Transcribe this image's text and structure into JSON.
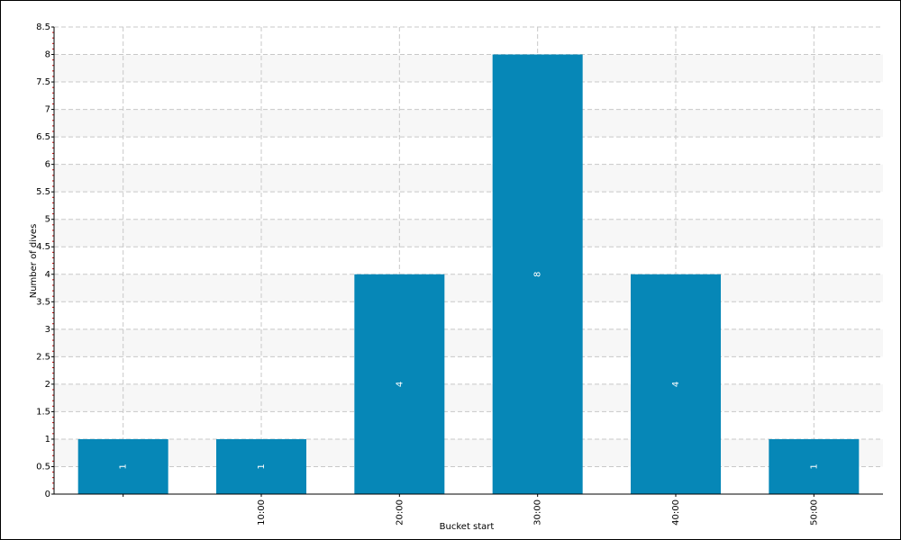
{
  "chart_data": {
    "type": "bar",
    "x_label": "Bucket start",
    "y_label": "Number of dives",
    "categories": [
      null,
      "10:00",
      "20:00",
      "30:00",
      "40:00",
      "50:00"
    ],
    "values": [
      1,
      1,
      4,
      8,
      4,
      1
    ],
    "color": "#0687b7",
    "ylim": [
      0,
      8.5
    ],
    "yticks": [
      0,
      0.5,
      1,
      1.5,
      2,
      2.5,
      3,
      3.5,
      4,
      4.5,
      5,
      5.5,
      6,
      6.5,
      7,
      7.5,
      8,
      8.5
    ],
    "grid": true
  }
}
